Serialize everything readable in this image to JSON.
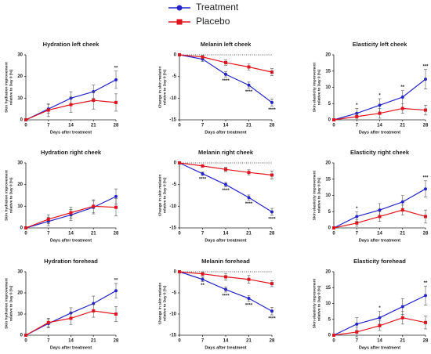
{
  "legend": [
    {
      "name": "Treatment",
      "color": "#2424c8",
      "marker": "circle"
    },
    {
      "name": "Placebo",
      "color": "#e0141e",
      "marker": "square"
    }
  ],
  "chart_data": [
    {
      "type": "line",
      "title": "Hydration left cheek",
      "xlabel": "Days after treatment",
      "ylabel": [
        "Skin hydration improvement",
        "relative to Day 0 (%)"
      ],
      "x": [
        0,
        7,
        14,
        21,
        28
      ],
      "xlim": [
        0,
        28
      ],
      "xticks": [
        0,
        7,
        14,
        21,
        28
      ],
      "ylim": [
        0,
        30
      ],
      "yticks": [
        0,
        10,
        20,
        30
      ],
      "zero_line": false,
      "series": [
        {
          "legend": 0,
          "values": [
            0,
            5,
            10,
            13,
            18.5
          ],
          "errors": [
            0,
            2,
            3,
            3,
            4
          ]
        },
        {
          "legend": 1,
          "values": [
            0,
            4.5,
            7,
            9,
            8
          ],
          "errors": [
            0,
            3,
            3.5,
            4,
            4
          ]
        }
      ],
      "annotations": [
        {
          "x": 28,
          "text": "**"
        }
      ]
    },
    {
      "type": "line",
      "title": "Melanin left cheek",
      "xlabel": "Days after treatment",
      "ylabel": [
        "Change in skin melanin",
        "relative to Day 0 (%)"
      ],
      "x": [
        0,
        7,
        14,
        21,
        28
      ],
      "xlim": [
        0,
        28
      ],
      "xticks": [
        0,
        7,
        14,
        21,
        28
      ],
      "ylim": [
        -15,
        0
      ],
      "yticks": [
        0,
        -5,
        -10,
        -15
      ],
      "zero_line": true,
      "series": [
        {
          "legend": 0,
          "values": [
            0,
            -1,
            -4.5,
            -7,
            -11
          ],
          "errors": [
            0,
            0.5,
            0.6,
            0.7,
            0.8
          ]
        },
        {
          "legend": 1,
          "values": [
            0,
            -0.5,
            -1.8,
            -2.8,
            -4
          ],
          "errors": [
            0,
            0.4,
            0.6,
            0.7,
            0.8
          ]
        }
      ],
      "annotations": [
        {
          "x": 14,
          "text": "****"
        },
        {
          "x": 21,
          "text": "****"
        },
        {
          "x": 28,
          "text": "****"
        }
      ]
    },
    {
      "type": "line",
      "title": "Elasticity left cheek",
      "xlabel": "Days after treatment",
      "ylabel": [
        "Skin elasticity improvement",
        "relative to Day 0 (%)"
      ],
      "x": [
        0,
        7,
        14,
        21,
        28
      ],
      "xlim": [
        0,
        28
      ],
      "xticks": [
        0,
        7,
        14,
        21,
        28
      ],
      "ylim": [
        0,
        20
      ],
      "yticks": [
        0,
        5,
        10,
        15,
        20
      ],
      "zero_line": false,
      "series": [
        {
          "legend": 0,
          "values": [
            0,
            2,
            4.5,
            7,
            12.5
          ],
          "errors": [
            0,
            1.5,
            2,
            2,
            3
          ]
        },
        {
          "legend": 1,
          "values": [
            0,
            1,
            2,
            3.5,
            3
          ],
          "errors": [
            0,
            1,
            1.5,
            1.5,
            1.5
          ]
        }
      ],
      "annotations": [
        {
          "x": 7,
          "text": "*"
        },
        {
          "x": 14,
          "text": "*"
        },
        {
          "x": 21,
          "text": "**"
        },
        {
          "x": 28,
          "text": "***"
        }
      ]
    },
    {
      "type": "line",
      "title": "Hydration right cheek",
      "xlabel": "Days after treatment",
      "ylabel": [
        "Skin hydration improvement",
        "relative to Day 0 (%)"
      ],
      "x": [
        0,
        7,
        14,
        21,
        28
      ],
      "xlim": [
        0,
        28
      ],
      "xticks": [
        0,
        7,
        14,
        21,
        28
      ],
      "ylim": [
        0,
        30
      ],
      "yticks": [
        0,
        10,
        20,
        30
      ],
      "zero_line": false,
      "series": [
        {
          "legend": 0,
          "values": [
            0,
            3,
            6,
            9.5,
            14.5
          ],
          "errors": [
            0,
            2,
            2.5,
            3,
            3.5
          ]
        },
        {
          "legend": 1,
          "values": [
            0,
            4,
            7,
            10,
            9.5
          ],
          "errors": [
            0,
            2,
            2.5,
            3,
            4
          ]
        }
      ],
      "annotations": []
    },
    {
      "type": "line",
      "title": "Melanin right cheek",
      "xlabel": "Days after treatment",
      "ylabel": [
        "Change in skin melanin",
        "relative to Day 0 (%)"
      ],
      "x": [
        0,
        7,
        14,
        21,
        28
      ],
      "xlim": [
        0,
        28
      ],
      "xticks": [
        0,
        7,
        14,
        21,
        28
      ],
      "ylim": [
        -15,
        0
      ],
      "yticks": [
        0,
        -5,
        -10,
        -15
      ],
      "zero_line": true,
      "series": [
        {
          "legend": 0,
          "values": [
            0,
            -2.5,
            -5,
            -8,
            -11.3
          ],
          "errors": [
            0,
            0.4,
            0.5,
            0.6,
            0.8
          ]
        },
        {
          "legend": 1,
          "values": [
            0,
            -0.7,
            -1.5,
            -2.2,
            -2.8
          ],
          "errors": [
            0,
            0.3,
            0.5,
            0.6,
            0.9
          ]
        }
      ],
      "annotations": [
        {
          "x": 7,
          "text": "****"
        },
        {
          "x": 14,
          "text": "****"
        },
        {
          "x": 21,
          "text": "****"
        },
        {
          "x": 28,
          "text": "****"
        }
      ]
    },
    {
      "type": "line",
      "title": "Elasticity right cheek",
      "xlabel": "Days after treatment",
      "ylabel": [
        "Skin elasticity improvement",
        "relative to Day 0 (%)"
      ],
      "x": [
        0,
        7,
        14,
        21,
        28
      ],
      "xlim": [
        0,
        28
      ],
      "xticks": [
        0,
        7,
        14,
        21,
        28
      ],
      "ylim": [
        0,
        20
      ],
      "yticks": [
        0,
        5,
        10,
        15,
        20
      ],
      "zero_line": false,
      "series": [
        {
          "legend": 0,
          "values": [
            0,
            3.5,
            5.5,
            8,
            12
          ],
          "errors": [
            0,
            1.5,
            2,
            2,
            2.5
          ]
        },
        {
          "legend": 1,
          "values": [
            0,
            1.5,
            3.5,
            5.5,
            3.5
          ],
          "errors": [
            0,
            1,
            1.5,
            1.5,
            2
          ]
        }
      ],
      "annotations": [
        {
          "x": 7,
          "text": "*"
        },
        {
          "x": 28,
          "text": "***"
        }
      ]
    },
    {
      "type": "line",
      "title": "Hydration forehead",
      "xlabel": "Days after treatment",
      "ylabel": [
        "Skin hydration improvement",
        "relative to Day 0 (%)"
      ],
      "x": [
        0,
        7,
        14,
        21,
        28
      ],
      "xlim": [
        0,
        28
      ],
      "xticks": [
        0,
        7,
        14,
        21,
        28
      ],
      "ylim": [
        0,
        30
      ],
      "yticks": [
        0,
        10,
        20,
        30
      ],
      "zero_line": false,
      "series": [
        {
          "legend": 0,
          "values": [
            0,
            5.5,
            10.5,
            15,
            21
          ],
          "errors": [
            0,
            2,
            2.5,
            3.5,
            3.5
          ]
        },
        {
          "legend": 1,
          "values": [
            0,
            6,
            8,
            11.5,
            10
          ],
          "errors": [
            0,
            2,
            3,
            3,
            3.5
          ]
        }
      ],
      "annotations": [
        {
          "x": 28,
          "text": "**"
        }
      ]
    },
    {
      "type": "line",
      "title": "Melanin forehead",
      "xlabel": "Days after treatment",
      "ylabel": [
        "Change in skin melanin",
        "relative to Day 0 (%)"
      ],
      "x": [
        0,
        7,
        14,
        21,
        28
      ],
      "xlim": [
        0,
        28
      ],
      "xticks": [
        0,
        7,
        14,
        21,
        28
      ],
      "ylim": [
        -15,
        0
      ],
      "yticks": [
        0,
        -5,
        -10,
        -15
      ],
      "zero_line": true,
      "series": [
        {
          "legend": 0,
          "values": [
            0,
            -1.8,
            -4.2,
            -6.3,
            -9.3
          ],
          "errors": [
            0,
            0.5,
            0.6,
            0.7,
            0.9
          ]
        },
        {
          "legend": 1,
          "values": [
            0,
            -0.5,
            -1.2,
            -1.8,
            -2.8
          ],
          "errors": [
            0,
            0.5,
            0.8,
            0.9,
            0.7
          ]
        }
      ],
      "annotations": [
        {
          "x": 7,
          "text": "**"
        },
        {
          "x": 14,
          "text": "****"
        },
        {
          "x": 21,
          "text": "****"
        },
        {
          "x": 28,
          "text": "****"
        }
      ]
    },
    {
      "type": "line",
      "title": "Elasticity forehead",
      "xlabel": "Days after treatment",
      "ylabel": [
        "Skin elasticity improvement",
        "relative to Day 0 (%)"
      ],
      "x": [
        0,
        7,
        14,
        21,
        28
      ],
      "xlim": [
        0,
        28
      ],
      "xticks": [
        0,
        7,
        14,
        21,
        28
      ],
      "ylim": [
        0,
        20
      ],
      "yticks": [
        0,
        5,
        10,
        15,
        20
      ],
      "zero_line": false,
      "series": [
        {
          "legend": 0,
          "values": [
            0,
            3.5,
            5.5,
            9,
            12.5
          ],
          "errors": [
            0,
            2,
            2,
            2.5,
            3
          ]
        },
        {
          "legend": 1,
          "values": [
            0,
            1,
            3,
            5.5,
            4
          ],
          "errors": [
            0,
            1.5,
            1.5,
            2,
            2
          ]
        }
      ],
      "annotations": [
        {
          "x": 14,
          "text": "*"
        },
        {
          "x": 28,
          "text": "**"
        }
      ]
    }
  ]
}
